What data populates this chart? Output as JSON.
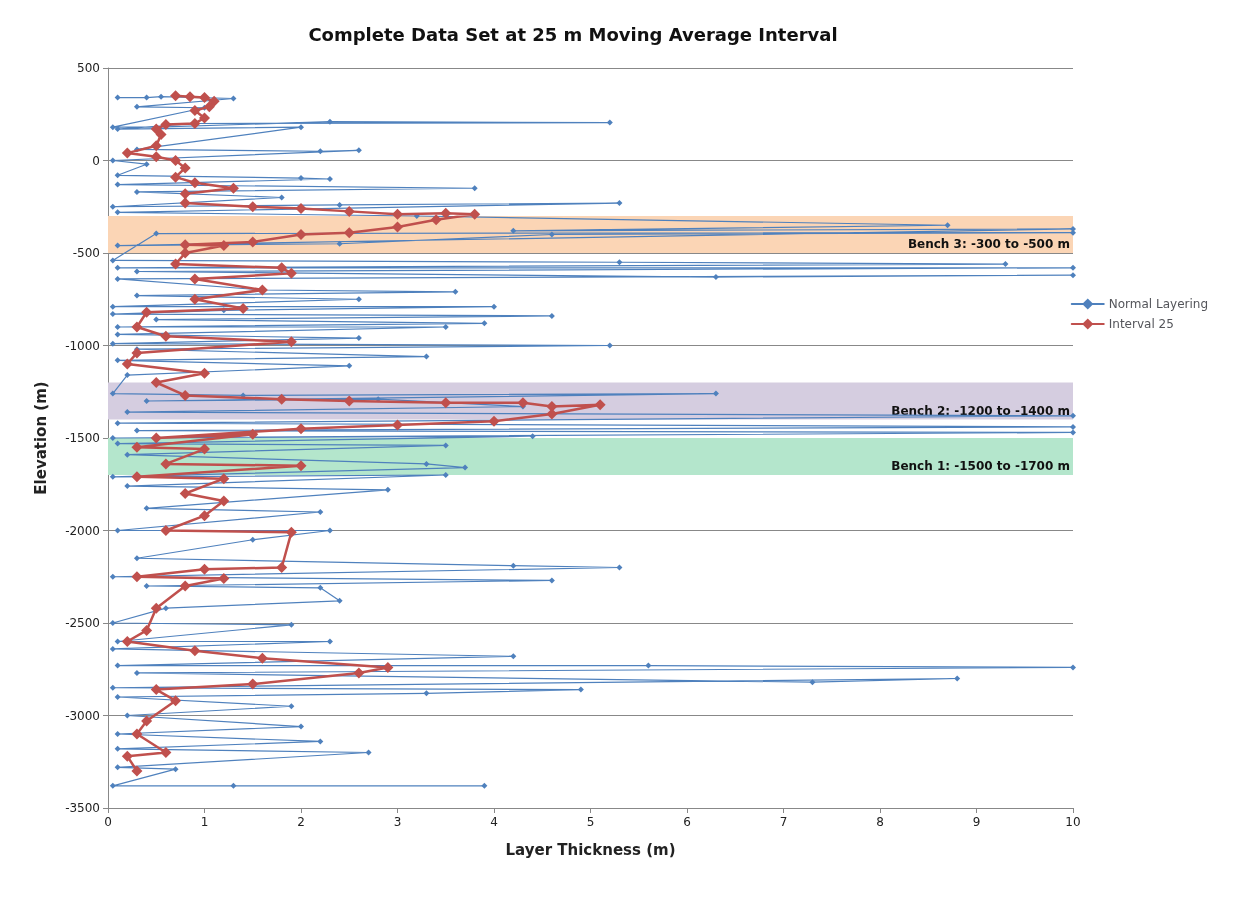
{
  "chart_data": {
    "type": "line",
    "title": "Complete Data Set at 25 m Moving Average Interval",
    "xlabel": "Layer Thickness (m)",
    "ylabel": "Elevation (m)",
    "xlim": [
      0,
      10
    ],
    "xticks": [
      0,
      1,
      2,
      3,
      4,
      5,
      6,
      7,
      8,
      9,
      10
    ],
    "ylim": [
      -3500,
      500
    ],
    "yticks": [
      -3500,
      -3000,
      -2500,
      -2000,
      -1500,
      -1000,
      -500,
      0,
      500
    ],
    "grid": "y",
    "legend": "right",
    "marker": "diamond",
    "line_style": "solid",
    "bands": [
      {
        "axis": "y",
        "from": -300,
        "to": -500,
        "label": "Bench 3: -300 to -500 m",
        "color": "#fbd5b5"
      },
      {
        "axis": "y",
        "from": -1200,
        "to": -1400,
        "label": "Bench 2: -1200 to -1400 m",
        "color": "#d5cde0"
      },
      {
        "axis": "y",
        "from": -1500,
        "to": -1700,
        "label": "Bench 1: -1500 to -1700 m",
        "color": "#b4e6cc"
      }
    ],
    "series": [
      {
        "name": "Normal Layering",
        "color": "#4f81bd",
        "x": [
          0.1,
          0.4,
          0.55,
          1.3,
          0.3,
          1.0,
          0.05,
          0.5,
          2.3,
          5.2,
          0.9,
          0.1,
          2.0,
          0.3,
          2.2,
          2.6,
          0.05,
          0.4,
          0.1,
          2.0,
          2.3,
          0.1,
          3.8,
          0.3,
          1.8,
          0.05,
          2.4,
          5.3,
          0.1,
          3.2,
          8.7,
          4.2,
          10,
          0.1,
          2.4,
          4.6,
          10,
          0.5,
          0.05,
          5.3,
          9.3,
          0.1,
          10,
          0.3,
          6.3,
          10,
          0.1,
          1.6,
          3.6,
          0.3,
          2.6,
          0.05,
          4.0,
          1.2,
          0.05,
          4.6,
          0.5,
          3.9,
          0.1,
          3.5,
          0.1,
          2.6,
          0.05,
          5.2,
          0.3,
          3.3,
          0.1,
          2.5,
          0.2,
          0.05,
          1.4,
          6.3,
          0.4,
          2.8,
          4.3,
          0.2,
          10,
          0.1,
          10,
          0.3,
          10,
          0.05,
          4.4,
          0.1,
          3.5,
          0.2,
          3.3,
          3.7,
          0.05,
          3.5,
          0.2,
          2.9,
          0.4,
          2.2,
          0.1,
          2.3,
          1.5,
          0.3,
          4.2,
          5.3,
          0.05,
          4.6,
          0.4,
          2.2,
          2.4,
          0.6,
          0.05,
          1.9,
          0.1,
          2.3,
          0.05,
          4.2,
          0.1,
          5.6,
          10,
          0.3,
          7.3,
          8.8,
          0.05,
          4.9,
          3.3,
          0.1,
          1.9,
          0.2,
          2.0,
          0.1,
          2.2,
          0.1,
          2.7,
          0.1,
          0.7,
          0.05,
          1.3,
          3.9
        ],
        "values": [
          340,
          340,
          345,
          335,
          290,
          285,
          180,
          180,
          210,
          205,
          200,
          170,
          180,
          60,
          50,
          55,
          0,
          -20,
          -80,
          -95,
          -100,
          -130,
          -150,
          -170,
          -200,
          -250,
          -240,
          -230,
          -280,
          -300,
          -350,
          -380,
          -370,
          -460,
          -450,
          -400,
          -390,
          -395,
          -540,
          -550,
          -560,
          -580,
          -580,
          -600,
          -630,
          -620,
          -640,
          -700,
          -710,
          -730,
          -750,
          -790,
          -790,
          -810,
          -830,
          -840,
          -860,
          -880,
          -900,
          -900,
          -940,
          -960,
          -990,
          -1000,
          -1020,
          -1060,
          -1080,
          -1110,
          -1160,
          -1260,
          -1270,
          -1260,
          -1300,
          -1290,
          -1330,
          -1360,
          -1380,
          -1420,
          -1440,
          -1460,
          -1470,
          -1500,
          -1490,
          -1530,
          -1540,
          -1590,
          -1640,
          -1660,
          -1710,
          -1700,
          -1760,
          -1780,
          -1880,
          -1900,
          -2000,
          -2000,
          -2050,
          -2150,
          -2190,
          -2200,
          -2250,
          -2270,
          -2300,
          -2310,
          -2380,
          -2420,
          -2500,
          -2510,
          -2600,
          -2600,
          -2640,
          -2680,
          -2730,
          -2730,
          -2740,
          -2770,
          -2820,
          -2800,
          -2850,
          -2860,
          -2880,
          -2900,
          -2950,
          -3000,
          -3060,
          -3100,
          -3140,
          -3180,
          -3200,
          -3280,
          -3290,
          -3380,
          -3380,
          -3380
        ]
      },
      {
        "name": "Interval 25",
        "color": "#c0504d",
        "x": [
          0.7,
          0.85,
          1.0,
          1.1,
          1.05,
          0.9,
          1.0,
          0.9,
          0.6,
          0.5,
          0.55,
          0.5,
          0.2,
          0.5,
          0.7,
          0.8,
          0.7,
          0.9,
          1.3,
          0.8,
          0.8,
          1.5,
          2.0,
          2.5,
          3.0,
          3.5,
          3.8,
          3.4,
          3.0,
          2.5,
          2.0,
          1.5,
          0.8,
          1.2,
          0.8,
          0.7,
          1.8,
          1.9,
          0.9,
          1.6,
          0.9,
          1.4,
          0.4,
          0.3,
          0.6,
          1.9,
          0.3,
          0.2,
          1.0,
          0.5,
          0.8,
          1.8,
          2.5,
          3.5,
          4.3,
          4.6,
          5.1,
          4.6,
          4.0,
          3.0,
          2.0,
          0.5,
          1.5,
          0.3,
          1.0,
          0.6,
          2.0,
          0.3,
          1.2,
          0.8,
          1.2,
          1.0,
          0.6,
          1.9,
          1.8,
          1.0,
          0.3,
          1.2,
          0.8,
          0.5,
          0.4,
          0.2,
          0.9,
          1.6,
          2.9,
          2.6,
          1.5,
          0.5,
          0.7,
          0.4,
          0.3,
          0.6,
          0.2,
          0.3
        ],
        "values": [
          350,
          345,
          340,
          320,
          290,
          270,
          230,
          200,
          195,
          170,
          140,
          80,
          40,
          20,
          0,
          -40,
          -90,
          -120,
          -150,
          -180,
          -230,
          -250,
          -260,
          -275,
          -290,
          -285,
          -290,
          -320,
          -360,
          -390,
          -400,
          -440,
          -455,
          -460,
          -500,
          -560,
          -580,
          -610,
          -640,
          -700,
          -750,
          -800,
          -820,
          -900,
          -950,
          -980,
          -1040,
          -1100,
          -1150,
          -1200,
          -1270,
          -1290,
          -1300,
          -1310,
          -1310,
          -1330,
          -1320,
          -1370,
          -1410,
          -1430,
          -1450,
          -1500,
          -1480,
          -1550,
          -1560,
          -1640,
          -1650,
          -1710,
          -1720,
          -1800,
          -1840,
          -1920,
          -2000,
          -2010,
          -2200,
          -2210,
          -2250,
          -2260,
          -2300,
          -2420,
          -2540,
          -2600,
          -2650,
          -2690,
          -2740,
          -2770,
          -2830,
          -2860,
          -2920,
          -3030,
          -3100,
          -3200,
          -3220,
          -3300
        ]
      }
    ]
  }
}
